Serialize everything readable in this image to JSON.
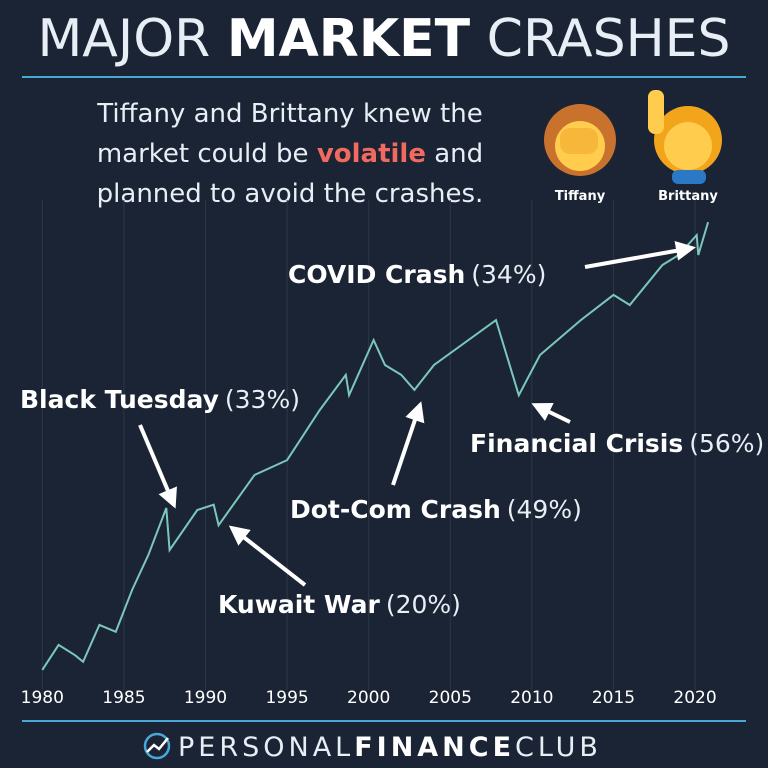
{
  "chart_data": {
    "type": "line",
    "title_parts": [
      "MAJOR",
      "MARKET",
      "CRASHES"
    ],
    "subtitle": [
      "Tiffany and Brittany knew the",
      "market could be",
      "volatile",
      "and",
      "planned to avoid the crashes."
    ],
    "people": [
      "Tiffany",
      "Brittany"
    ],
    "x": [
      1980.0,
      1981.0,
      1982.0,
      1982.5,
      1983.5,
      1984.5,
      1985.5,
      1986.5,
      1987.6,
      1987.8,
      1989.5,
      1990.5,
      1990.8,
      1993.0,
      1995.0,
      1997.0,
      1998.6,
      1998.8,
      2000.3,
      2001.0,
      2002.0,
      2002.8,
      2004.0,
      2007.8,
      2009.2,
      2010.5,
      2013.0,
      2015.0,
      2016.0,
      2018.0,
      2019.0,
      2020.1,
      2020.2,
      2020.8
    ],
    "values": [
      103,
      126,
      116,
      110,
      148,
      140,
      196,
      260,
      379,
      270,
      373,
      389,
      330,
      494,
      557,
      833,
      1105,
      939,
      1463,
      1197,
      1105,
      980,
      1197,
      1718,
      939,
      1297,
      1718,
      2103,
      1940,
      2676,
      2900,
      3403,
      2900,
      3779
    ],
    "color": "#7cc7bb",
    "log_scale": true,
    "xlim": [
      1979,
      2023
    ],
    "ylim": [
      95,
      4000
    ],
    "xticks": [
      1980,
      1985,
      1990,
      1995,
      2000,
      2005,
      2010,
      2015,
      2020
    ],
    "grid": true,
    "annotations": [
      {
        "name": "Black Tuesday",
        "pct": "(33%)"
      },
      {
        "name": "Kuwait War",
        "pct": "(20%)"
      },
      {
        "name": "Dot-Com Crash",
        "pct": "(49%)"
      },
      {
        "name": "Financial Crisis",
        "pct": "(56%)"
      },
      {
        "name": "COVID Crash",
        "pct": "(34%)"
      }
    ],
    "footer": [
      "PERSONAL",
      "FINANCE",
      "CLUB"
    ]
  }
}
